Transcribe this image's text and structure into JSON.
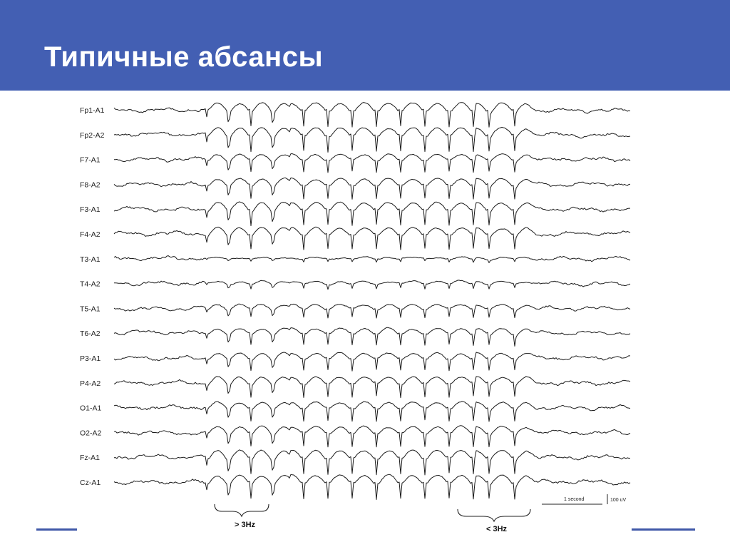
{
  "slide": {
    "title": "Типичные абсансы"
  },
  "eeg": {
    "channels": [
      "Fp1-A1",
      "Fp2-A2",
      "F7-A1",
      "F8-A2",
      "F3-A1",
      "F4-A2",
      "T3-A1",
      "T4-A2",
      "T5-A1",
      "T6-A2",
      "P3-A1",
      "P4-A2",
      "O1-A1",
      "O2-A2",
      "Fz-A1",
      "Cz-A1"
    ],
    "annotations": {
      "onset": "> 3Hz",
      "offset": "< 3Hz"
    },
    "scale": {
      "time": "1 second",
      "amplitude": "100 uV"
    }
  }
}
